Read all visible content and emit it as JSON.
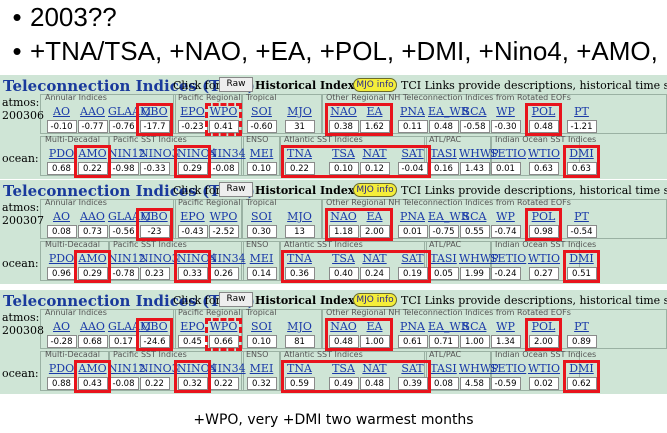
{
  "bullets": [
    "2003??",
    "+TNA/TSA, +NAO, +EA, +POL, +DMI, +Nino4, +AMO,"
  ],
  "panel_title": "Teleconnection Indices (TCIs)",
  "click_for": "Click for",
  "raw_button": "Raw",
  "historical": "Historical Index Data",
  "mjo_button": "MJO info",
  "links_text": "TCI Links provide descriptions, historical time series, global compos",
  "atmos_label": "atmos:",
  "ocean_label": "ocean:",
  "group_labels": {
    "annular": "Annular Indices",
    "pacific_regional": "Pacific Regional",
    "tropical": "Tropical",
    "other_nh": "Other Regional NH Teleconnection Indices from Rotated EOFs",
    "multi_decadal": "Multi-Decadal",
    "pacific_sst": "Pacific SST Indices",
    "enso": "ENSO",
    "atlantic_sst": "Atlantic SST Indices",
    "atl_pac": "ATL/PAC",
    "indian": "Indian Ocean SST Indices"
  },
  "atmos_names": [
    "AO",
    "AAO",
    "GLAAM",
    "QBO",
    "EPO",
    "WPO",
    "SOI",
    "MJO",
    "NAO",
    "EA",
    "PNA",
    "EA_WR",
    "SCA",
    "WP",
    "POL",
    "PT"
  ],
  "ocean_names": [
    "PDO",
    "AMO",
    "NIN12",
    "NINO3",
    "NINO4",
    "NIN34",
    "MEI",
    "TNA",
    "TSA",
    "NAT",
    "SAT",
    "TASI",
    "WHWP",
    "SETIO",
    "WTIO",
    "DMI"
  ],
  "panels": [
    {
      "date": "200306",
      "atmos_values": [
        "-0.10",
        "-0.77",
        "-0.76",
        "-17.7",
        "-0.23",
        "0.41",
        "-0.60",
        "31",
        "0.38",
        "1.62",
        "0.11",
        "0.48",
        "-0.58",
        "-0.30",
        "0.48",
        "-1.21"
      ],
      "ocean_values": [
        "0.68",
        "0.22",
        "-0.98",
        "-0.33",
        "0.29",
        "-0.08",
        "0.10",
        "0.22",
        "0.10",
        "0.12",
        "-0.04",
        "0.16",
        "1.43",
        "0.01",
        "0.63",
        "0.63"
      ]
    },
    {
      "date": "200307",
      "atmos_values": [
        "0.08",
        "0.73",
        "-0.56",
        "-23",
        "-0.43",
        "-2.52",
        "0.30",
        "13",
        "1.18",
        "2.00",
        "0.01",
        "-0.75",
        "0.55",
        "-0.74",
        "0.98",
        "-0.54"
      ],
      "ocean_values": [
        "0.96",
        "0.29",
        "-0.78",
        "0.23",
        "0.33",
        "0.26",
        "0.14",
        "0.36",
        "0.40",
        "0.24",
        "0.19",
        "0.05",
        "1.99",
        "-0.24",
        "0.27",
        "0.51"
      ]
    },
    {
      "date": "200308",
      "atmos_values": [
        "-0.28",
        "0.68",
        "0.17",
        "-24.6",
        "0.45",
        "0.66",
        "0.10",
        "81",
        "0.48",
        "1.00",
        "0.61",
        "0.71",
        "1.00",
        "1.34",
        "2.00",
        "0.89"
      ],
      "ocean_values": [
        "0.88",
        "0.43",
        "-0.08",
        "0.22",
        "0.32",
        "0.22",
        "0.32",
        "0.59",
        "0.49",
        "0.48",
        "0.39",
        "0.08",
        "4.58",
        "-0.59",
        "0.02",
        "0.62"
      ]
    }
  ],
  "caption": "+WPO, very +DMI two warmest months",
  "colors": {
    "highlight": "#e8141c",
    "panel_bg": "#cfe5d6",
    "link": "#1a3aa8",
    "mjo_bg": "#f4ee3a"
  }
}
